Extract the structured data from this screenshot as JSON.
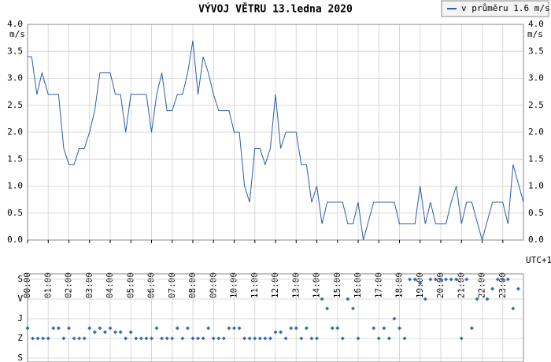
{
  "chart_data": [
    {
      "type": "line",
      "title": "VÝVOJ VĚTRU  13.ledna 2020",
      "y_label": "m/s",
      "x_label": "UTC+1",
      "x": [
        0,
        0.2,
        0.45,
        0.7,
        1.0,
        1.5,
        1.75,
        2.0,
        2.25,
        2.5,
        2.75,
        3.0,
        3.25,
        3.5,
        4.0,
        4.25,
        4.5,
        4.75,
        5.0,
        5.75,
        6.0,
        6.25,
        6.5,
        6.75,
        7.0,
        7.25,
        7.5,
        7.75,
        8.0,
        8.25,
        8.5,
        8.75,
        9.0,
        9.25,
        9.75,
        10.0,
        10.25,
        10.5,
        10.75,
        11.0,
        11.25,
        11.5,
        11.75,
        12.0,
        12.25,
        12.5,
        13.0,
        13.25,
        13.5,
        13.75,
        14.0,
        14.25,
        14.5,
        15.25,
        15.5,
        15.75,
        16.0,
        16.25,
        16.75,
        17.75,
        18.0,
        18.75,
        19.0,
        19.25,
        19.5,
        19.75,
        20.25,
        20.5,
        20.75,
        21.0,
        21.25,
        21.5,
        22.0,
        22.5,
        23.0,
        23.25,
        23.5,
        24.0
      ],
      "series": [
        {
          "name": "v průměru 1.6 m/s",
          "color": "#2b5ca8",
          "values": [
            3.4,
            3.4,
            2.7,
            3.1,
            2.7,
            2.7,
            1.7,
            1.4,
            1.4,
            1.7,
            1.7,
            2.0,
            2.4,
            3.1,
            3.1,
            2.7,
            2.7,
            2.0,
            2.7,
            2.7,
            2.0,
            2.7,
            3.1,
            2.4,
            2.4,
            2.7,
            2.7,
            3.1,
            3.7,
            2.7,
            3.4,
            3.1,
            2.7,
            2.4,
            2.4,
            2.0,
            2.0,
            1.0,
            0.7,
            1.7,
            1.7,
            1.4,
            1.7,
            2.7,
            1.7,
            2.0,
            2.0,
            1.4,
            1.4,
            0.7,
            1.0,
            0.3,
            0.7,
            0.7,
            0.3,
            0.3,
            0.7,
            0.0,
            0.7,
            0.7,
            0.3,
            0.3,
            1.0,
            0.3,
            0.7,
            0.3,
            0.3,
            0.7,
            1.0,
            0.3,
            0.7,
            0.7,
            0.0,
            0.7,
            0.7,
            0.3,
            1.4,
            0.7
          ]
        }
      ],
      "xlim": [
        0,
        24
      ],
      "xticks": [
        {
          "value": 0,
          "label": "00:00"
        },
        {
          "value": 1,
          "label": "01:00"
        },
        {
          "value": 2,
          "label": "02:00"
        },
        {
          "value": 3,
          "label": "03:00"
        },
        {
          "value": 4,
          "label": "04:00"
        },
        {
          "value": 5,
          "label": "05:00"
        },
        {
          "value": 6,
          "label": "06:00"
        },
        {
          "value": 7,
          "label": "07:00"
        },
        {
          "value": 8,
          "label": "08:00"
        },
        {
          "value": 9,
          "label": "09:00"
        },
        {
          "value": 10,
          "label": "10:00"
        },
        {
          "value": 11,
          "label": "11:00"
        },
        {
          "value": 12,
          "label": "12:00"
        },
        {
          "value": 13,
          "label": "13:00"
        },
        {
          "value": 14,
          "label": "14:00"
        },
        {
          "value": 15,
          "label": "15:00"
        },
        {
          "value": 16,
          "label": "16:00"
        },
        {
          "value": 17,
          "label": "17:00"
        },
        {
          "value": 18,
          "label": "18:00"
        },
        {
          "value": 19,
          "label": "19:00"
        },
        {
          "value": 20,
          "label": "20:00"
        },
        {
          "value": 21,
          "label": "21:00"
        },
        {
          "value": 22,
          "label": "22:00"
        },
        {
          "value": 23,
          "label": "23:00"
        }
      ],
      "ylim": [
        0,
        4
      ],
      "yticks": [
        {
          "value": 0,
          "label": "0.0"
        },
        {
          "value": 0.5,
          "label": "0.5"
        },
        {
          "value": 1,
          "label": "1.0"
        },
        {
          "value": 1.5,
          "label": "1.5"
        },
        {
          "value": 2,
          "label": "2.0"
        },
        {
          "value": 2.5,
          "label": "2.5"
        },
        {
          "value": 3,
          "label": "3.0"
        },
        {
          "value": 3.5,
          "label": "3.5"
        },
        {
          "value": 4,
          "label": "4.0"
        }
      ],
      "grid": true,
      "legend": "top-right"
    },
    {
      "type": "scatter",
      "color": "#3a6bb0",
      "x": [
        0,
        0.25,
        0.5,
        0.75,
        1.0,
        1.25,
        1.5,
        1.75,
        2.0,
        2.25,
        2.5,
        2.75,
        3.0,
        3.25,
        3.5,
        3.75,
        4.0,
        4.25,
        4.5,
        4.75,
        5.0,
        5.25,
        5.5,
        5.75,
        6.0,
        6.25,
        6.5,
        6.75,
        7.0,
        7.25,
        7.5,
        7.75,
        8.0,
        8.25,
        8.5,
        8.75,
        9.0,
        9.25,
        9.5,
        9.75,
        10.0,
        10.25,
        10.5,
        10.75,
        11.0,
        11.25,
        11.5,
        11.75,
        12.0,
        12.25,
        12.5,
        12.75,
        13.0,
        13.25,
        13.5,
        13.75,
        14.0,
        14.25,
        14.5,
        14.75,
        15.0,
        15.25,
        15.5,
        15.75,
        16.0,
        16.75,
        17.0,
        17.25,
        17.5,
        17.75,
        18.0,
        18.25,
        18.5,
        18.75,
        19.0,
        19.25,
        19.5,
        19.75,
        20.0,
        20.25,
        20.5,
        20.75,
        21.0,
        21.25,
        21.5,
        21.75,
        22.25,
        22.5,
        22.75,
        23.0,
        23.25,
        23.5,
        23.75
      ],
      "values": [
        223,
        270,
        270,
        270,
        270,
        223,
        223,
        270,
        223,
        270,
        270,
        270,
        223,
        241,
        223,
        241,
        223,
        241,
        241,
        270,
        241,
        270,
        270,
        270,
        270,
        223,
        270,
        270,
        270,
        223,
        270,
        223,
        270,
        270,
        270,
        223,
        270,
        270,
        270,
        223,
        223,
        223,
        270,
        270,
        270,
        270,
        270,
        270,
        241,
        241,
        270,
        223,
        223,
        270,
        223,
        270,
        270,
        90,
        133,
        223,
        223,
        270,
        90,
        133,
        270,
        223,
        270,
        223,
        270,
        180,
        223,
        270,
        0,
        0,
        18,
        90,
        0,
        0,
        0,
        0,
        0,
        0,
        270,
        0,
        223,
        90,
        90,
        43,
        0,
        0,
        0,
        133,
        43
      ],
      "ylim": [
        360,
        0
      ],
      "yticks": [
        {
          "value": 0,
          "label": "S"
        },
        {
          "value": 90,
          "label": "V"
        },
        {
          "value": 180,
          "label": "J"
        },
        {
          "value": 270,
          "label": "Z"
        },
        {
          "value": 360,
          "label": "S"
        }
      ],
      "grid": true
    }
  ]
}
